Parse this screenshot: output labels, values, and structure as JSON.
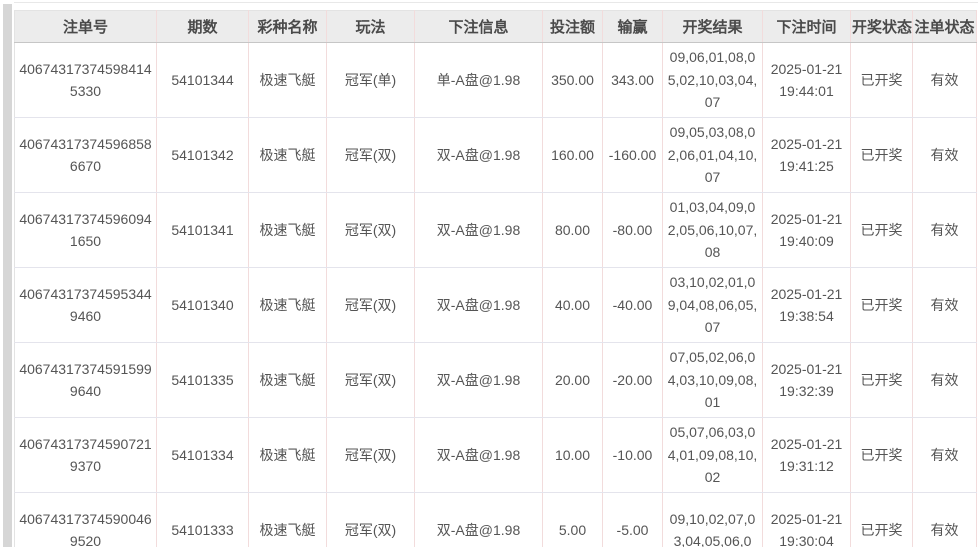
{
  "colors": {
    "header_bg": "#ececec",
    "header_border": "#c6c6c6",
    "col_separator": "#f2dcdc",
    "row_separator": "#e4e4ec",
    "table_edge": "#e3e3e3",
    "text_color": "#555555",
    "header_text": "#4a4a4a",
    "page_bg": "#ffffff",
    "strip_color": "#d6d6d6"
  },
  "table": {
    "columns": [
      {
        "key": "order_id",
        "label": "注单号"
      },
      {
        "key": "period",
        "label": "期数"
      },
      {
        "key": "lottery",
        "label": "彩种名称"
      },
      {
        "key": "play",
        "label": "玩法"
      },
      {
        "key": "bet_info",
        "label": "下注信息"
      },
      {
        "key": "amount",
        "label": "投注额"
      },
      {
        "key": "win_loss",
        "label": "输赢"
      },
      {
        "key": "result",
        "label": "开奖结果"
      },
      {
        "key": "time",
        "label": "下注时间"
      },
      {
        "key": "draw_status",
        "label": "开奖状态"
      },
      {
        "key": "order_status",
        "label": "注单状态"
      }
    ],
    "rows": [
      {
        "order_id": "406743173745984145330",
        "period": "54101344",
        "lottery": "极速飞艇",
        "play": "冠军(单)",
        "bet_info": "单-A盘@1.98",
        "amount": "350.00",
        "win_loss": "343.00",
        "result": "09,06,01,08,05,02,10,03,04,07",
        "time": "2025-01-21 19:44:01",
        "draw_status": "已开奖",
        "order_status": "有效"
      },
      {
        "order_id": "406743173745968586670",
        "period": "54101342",
        "lottery": "极速飞艇",
        "play": "冠军(双)",
        "bet_info": "双-A盘@1.98",
        "amount": "160.00",
        "win_loss": "-160.00",
        "result": "09,05,03,08,02,06,01,04,10,07",
        "time": "2025-01-21 19:41:25",
        "draw_status": "已开奖",
        "order_status": "有效"
      },
      {
        "order_id": "406743173745960941650",
        "period": "54101341",
        "lottery": "极速飞艇",
        "play": "冠军(双)",
        "bet_info": "双-A盘@1.98",
        "amount": "80.00",
        "win_loss": "-80.00",
        "result": "01,03,04,09,02,05,06,10,07,08",
        "time": "2025-01-21 19:40:09",
        "draw_status": "已开奖",
        "order_status": "有效"
      },
      {
        "order_id": "406743173745953449460",
        "period": "54101340",
        "lottery": "极速飞艇",
        "play": "冠军(双)",
        "bet_info": "双-A盘@1.98",
        "amount": "40.00",
        "win_loss": "-40.00",
        "result": "03,10,02,01,09,04,08,06,05,07",
        "time": "2025-01-21 19:38:54",
        "draw_status": "已开奖",
        "order_status": "有效"
      },
      {
        "order_id": "406743173745915999640",
        "period": "54101335",
        "lottery": "极速飞艇",
        "play": "冠军(双)",
        "bet_info": "双-A盘@1.98",
        "amount": "20.00",
        "win_loss": "-20.00",
        "result": "07,05,02,06,04,03,10,09,08,01",
        "time": "2025-01-21 19:32:39",
        "draw_status": "已开奖",
        "order_status": "有效"
      },
      {
        "order_id": "406743173745907219370",
        "period": "54101334",
        "lottery": "极速飞艇",
        "play": "冠军(双)",
        "bet_info": "双-A盘@1.98",
        "amount": "10.00",
        "win_loss": "-10.00",
        "result": "05,07,06,03,04,01,09,08,10,02",
        "time": "2025-01-21 19:31:12",
        "draw_status": "已开奖",
        "order_status": "有效"
      },
      {
        "order_id": "406743173745900469520",
        "period": "54101333",
        "lottery": "极速飞艇",
        "play": "冠军(双)",
        "bet_info": "双-A盘@1.98",
        "amount": "5.00",
        "win_loss": "-5.00",
        "result": "09,10,02,07,03,04,05,06,0",
        "time": "2025-01-21 19:30:04",
        "draw_status": "已开奖",
        "order_status": "有效"
      }
    ]
  }
}
